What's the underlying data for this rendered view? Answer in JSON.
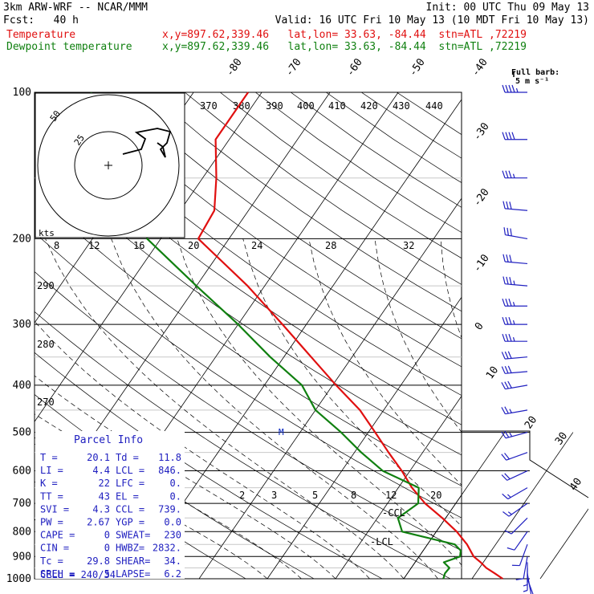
{
  "header": {
    "model": "3km ARW-WRF -- NCAR/MMM",
    "init": "Init: 00 UTC Thu 09 May 13",
    "fcst": "Fcst:   40 h",
    "valid": "Valid: 16 UTC Fri 10 May 13 (10 MDT Fri 10 May 13)",
    "temperature_label": "Temperature",
    "temperature_info": "x,y=897.62,339.46   lat,lon= 33.63, -84.44  stn=ATL ,72219",
    "dewpoint_label": "Dewpoint temperature",
    "dewpoint_info": "x,y=897.62,339.46   lat,lon= 33.63, -84.44  stn=ATL ,72219"
  },
  "colors": {
    "temperature": "#e01010",
    "dewpoint": "#108010",
    "lines": "#000000",
    "barbs": "#2020c0"
  },
  "barb_legend": {
    "title": "Full barb:",
    "value": "5 m s⁻¹"
  },
  "hodograph": {
    "units": "kts",
    "ring_labels": [
      "25",
      "50"
    ]
  },
  "chart_data": {
    "type": "line",
    "title": "",
    "pressure_levels": [
      "100",
      "200",
      "300",
      "400",
      "500",
      "600",
      "700",
      "800",
      "900",
      "1000"
    ],
    "isotherm_labels": [
      "-80",
      "-70",
      "-60",
      "-50",
      "-40",
      "-30",
      "-20",
      "-10",
      "0",
      "10",
      "20",
      "30",
      "40"
    ],
    "theta_labels_top": [
      "370",
      "380",
      "390",
      "400",
      "410",
      "420",
      "430",
      "440"
    ],
    "theta_labels_left": [
      "290",
      "280",
      "270"
    ],
    "mixing_ratio_labels": [
      "8",
      "12",
      "16",
      "20",
      "24",
      "28",
      "32"
    ],
    "mixing_ratio_labels_low": [
      "2",
      "3",
      "5",
      "8",
      "12",
      "20"
    ],
    "annotations": [
      "CCL",
      "LCL",
      "M"
    ],
    "series": [
      {
        "name": "Temperature",
        "points": [
          [
            1000,
            24.5
          ],
          [
            975,
            22.8
          ],
          [
            950,
            21.0
          ],
          [
            925,
            19.6
          ],
          [
            900,
            18.0
          ],
          [
            850,
            15.8
          ],
          [
            800,
            13.0
          ],
          [
            750,
            9.5
          ],
          [
            700,
            5.5
          ],
          [
            650,
            2.0
          ],
          [
            600,
            -1.2
          ],
          [
            550,
            -5.0
          ],
          [
            500,
            -9.0
          ],
          [
            450,
            -13.5
          ],
          [
            400,
            -19.5
          ],
          [
            350,
            -26.0
          ],
          [
            300,
            -33.5
          ],
          [
            250,
            -42.5
          ],
          [
            200,
            -54.5
          ],
          [
            175,
            -55.0
          ],
          [
            150,
            -58.0
          ],
          [
            125,
            -62.0
          ],
          [
            100,
            -62.0
          ]
        ]
      },
      {
        "name": "Dewpoint temperature",
        "points": [
          [
            1000,
            15.8
          ],
          [
            975,
            15.5
          ],
          [
            950,
            15.6
          ],
          [
            925,
            14.2
          ],
          [
            900,
            16.0
          ],
          [
            875,
            15.5
          ],
          [
            850,
            14.0
          ],
          [
            800,
            5.0
          ],
          [
            750,
            3.0
          ],
          [
            700,
            4.5
          ],
          [
            650,
            3.0
          ],
          [
            600,
            -4.0
          ],
          [
            550,
            -9.0
          ],
          [
            500,
            -14.0
          ],
          [
            450,
            -20.0
          ],
          [
            400,
            -24.5
          ],
          [
            350,
            -32.0
          ],
          [
            300,
            -40.0
          ],
          [
            250,
            -50.0
          ],
          [
            200,
            -62.0
          ],
          [
            175,
            -66.0
          ],
          [
            150,
            -76.0
          ],
          [
            130,
            -78.0
          ],
          [
            100,
            -85.0
          ]
        ]
      }
    ],
    "parcel_info": {
      "title": "Parcel Info",
      "rows": [
        [
          "T  =",
          "20.1",
          "Td =",
          "11.8"
        ],
        [
          "LI =",
          "4.4",
          "LCL =",
          "846."
        ],
        [
          "K  =",
          "22",
          "LFC =",
          "0."
        ],
        [
          "TT =",
          "43",
          "EL  =",
          "0."
        ],
        [
          "SVI =",
          "4.3",
          "CCL =",
          "739."
        ],
        [
          "PW =",
          "2.67",
          "YGP =",
          "0.0"
        ],
        [
          "CAPE =",
          "0",
          "SWEAT=",
          "230"
        ],
        [
          "CIN =",
          "0",
          "HWBZ=",
          "2832."
        ],
        [
          "Tc =",
          "29.8",
          "SHEAR=",
          "34."
        ],
        [
          "SREH =",
          "5",
          "LAPSE=",
          "6.2"
        ]
      ],
      "cell": "CELL = 240/34"
    },
    "wind_barbs": [
      {
        "p": 100,
        "dir": 270,
        "speed": 45
      },
      {
        "p": 125,
        "dir": 270,
        "speed": 40
      },
      {
        "p": 150,
        "dir": 270,
        "speed": 35
      },
      {
        "p": 175,
        "dir": 275,
        "speed": 30
      },
      {
        "p": 200,
        "dir": 280,
        "speed": 30
      },
      {
        "p": 225,
        "dir": 275,
        "speed": 30
      },
      {
        "p": 250,
        "dir": 275,
        "speed": 35
      },
      {
        "p": 275,
        "dir": 270,
        "speed": 35
      },
      {
        "p": 300,
        "dir": 270,
        "speed": 35
      },
      {
        "p": 325,
        "dir": 270,
        "speed": 35
      },
      {
        "p": 350,
        "dir": 265,
        "speed": 30
      },
      {
        "p": 375,
        "dir": 265,
        "speed": 30
      },
      {
        "p": 400,
        "dir": 260,
        "speed": 30
      },
      {
        "p": 450,
        "dir": 260,
        "speed": 25
      },
      {
        "p": 500,
        "dir": 255,
        "speed": 25
      },
      {
        "p": 550,
        "dir": 250,
        "speed": 20
      },
      {
        "p": 600,
        "dir": 245,
        "speed": 20
      },
      {
        "p": 650,
        "dir": 240,
        "speed": 15
      },
      {
        "p": 700,
        "dir": 235,
        "speed": 15
      },
      {
        "p": 750,
        "dir": 225,
        "speed": 10
      },
      {
        "p": 800,
        "dir": 215,
        "speed": 10
      },
      {
        "p": 850,
        "dir": 200,
        "speed": 10
      },
      {
        "p": 900,
        "dir": 190,
        "speed": 10
      },
      {
        "p": 925,
        "dir": 180,
        "speed": 5
      },
      {
        "p": 950,
        "dir": 180,
        "speed": 5
      },
      {
        "p": 975,
        "dir": 170,
        "speed": 5
      },
      {
        "p": 1000,
        "dir": 160,
        "speed": 5
      }
    ]
  }
}
